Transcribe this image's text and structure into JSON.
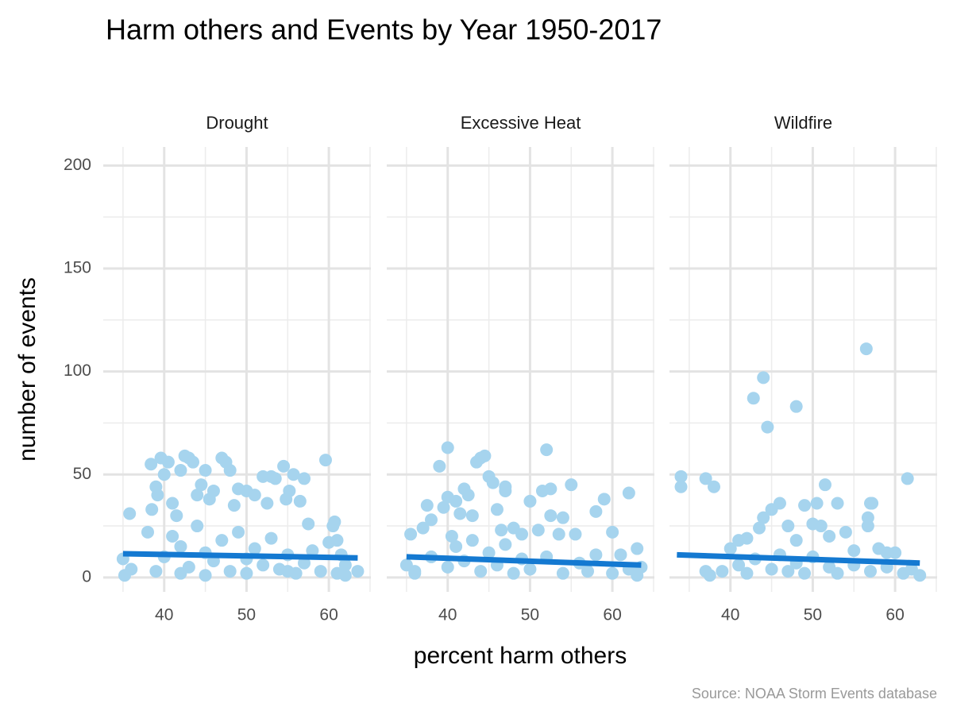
{
  "chart_data": {
    "type": "scatter",
    "title": "Harm others and Events by Year 1950-2017",
    "x_label": "percent harm others",
    "y_label": "number of events",
    "caption": "Source: NOAA Storm Events database",
    "color": "#a6d4ee",
    "trend_color": "#1479d1",
    "grid": true,
    "xlim": [
      32.6,
      65.1
    ],
    "ylim": [
      -7,
      209
    ],
    "xticks": [
      40,
      50,
      60
    ],
    "yticks": [
      0,
      50,
      100,
      150,
      200
    ],
    "xminor": [
      35,
      45,
      55,
      65
    ],
    "yminor": [
      25,
      75,
      125,
      175
    ],
    "facets": [
      {
        "name": "Drought",
        "x": [
          35,
          35.2,
          35.8,
          36,
          38,
          38.4,
          38.5,
          39,
          39.2,
          39.6,
          40,
          40.5,
          41,
          41.5,
          42,
          42.5,
          43,
          43.5,
          44,
          44.5,
          45,
          45.5,
          46,
          47,
          47.5,
          48,
          48.5,
          49,
          50,
          51,
          52,
          52.5,
          53,
          53.5,
          54.5,
          54.8,
          55.2,
          55.7,
          56.5,
          57,
          57.5,
          59.6,
          60,
          60.5,
          60.7,
          61,
          61.5,
          62,
          63.5,
          40,
          41,
          42,
          43,
          44,
          45,
          46,
          47,
          48,
          49,
          50,
          51,
          52,
          53,
          54,
          55,
          56,
          57,
          58,
          59,
          61,
          62,
          39,
          42,
          45,
          50,
          55
        ],
        "values": [
          9,
          1,
          31,
          4,
          22,
          55,
          33,
          44,
          40,
          58,
          50,
          56,
          36,
          30,
          52,
          59,
          58,
          56,
          40,
          45,
          52,
          38,
          42,
          58,
          56,
          52,
          35,
          43,
          42,
          40,
          49,
          36,
          49,
          48,
          54,
          38,
          42,
          50,
          37,
          48,
          26,
          57,
          17,
          25,
          27,
          18,
          11,
          6,
          3,
          10,
          20,
          15,
          5,
          25,
          12,
          8,
          18,
          3,
          22,
          9,
          14,
          6,
          19,
          4,
          11,
          2,
          7,
          13,
          3,
          2,
          1,
          3,
          2,
          1,
          2,
          3
        ],
        "trend": {
          "x": [
            35,
            63.5
          ],
          "y": [
            11.5,
            9.5
          ]
        }
      },
      {
        "name": "Excessive Heat",
        "x": [
          35,
          35.5,
          36,
          37,
          37.5,
          38,
          39,
          39.5,
          40,
          40,
          40.5,
          41,
          41.5,
          42,
          42.5,
          43,
          43.5,
          44,
          44.5,
          45,
          45.5,
          46,
          46.5,
          47,
          47,
          48,
          49,
          50,
          51,
          51.5,
          52,
          52.5,
          52.5,
          53.5,
          54,
          55,
          55.5,
          58,
          59,
          60,
          61,
          62,
          63,
          63.5,
          36,
          38,
          40,
          41,
          42,
          43,
          44,
          45,
          46,
          47,
          48,
          49,
          50,
          52,
          54,
          56,
          57,
          58,
          60,
          62,
          63
        ],
        "values": [
          6,
          21,
          3,
          24,
          35,
          28,
          54,
          34,
          63,
          39,
          20,
          37,
          31,
          43,
          40,
          30,
          56,
          58,
          59,
          49,
          46,
          33,
          23,
          44,
          42,
          24,
          21,
          37,
          23,
          42,
          62,
          43,
          30,
          21,
          29,
          45,
          21,
          32,
          38,
          22,
          11,
          41,
          14,
          5,
          2,
          10,
          5,
          15,
          8,
          18,
          3,
          12,
          6,
          16,
          2,
          9,
          4,
          10,
          2,
          7,
          3,
          11,
          2,
          4,
          1
        ],
        "trend": {
          "x": [
            35,
            63.5
          ],
          "y": [
            10,
            6
          ]
        }
      },
      {
        "name": "Wildfire",
        "x": [
          34,
          34,
          37,
          38,
          37,
          37.5,
          40,
          41,
          42,
          42.8,
          43.5,
          44,
          44.5,
          44,
          45,
          46,
          47,
          48,
          48,
          49,
          50,
          50.5,
          51,
          51.5,
          52,
          53,
          54,
          55,
          56.5,
          57,
          56.7,
          56.7,
          57.2,
          58,
          59,
          60,
          61.5,
          62,
          63,
          39,
          41,
          42,
          43,
          45,
          46,
          47,
          48,
          49,
          50,
          52,
          53,
          55,
          57,
          59,
          61
        ],
        "values": [
          49,
          44,
          48,
          44,
          3,
          1,
          14,
          18,
          19,
          87,
          24,
          97,
          73,
          29,
          33,
          36,
          25,
          83,
          18,
          35,
          26,
          36,
          25,
          45,
          20,
          36,
          22,
          13,
          111,
          36,
          29,
          25,
          36,
          14,
          12,
          12,
          48,
          4,
          1,
          3,
          6,
          2,
          9,
          4,
          11,
          3,
          7,
          2,
          10,
          5,
          2,
          6,
          3,
          5,
          2
        ],
        "trend": {
          "x": [
            33.5,
            63
          ],
          "y": [
            11,
            7
          ]
        }
      }
    ]
  }
}
